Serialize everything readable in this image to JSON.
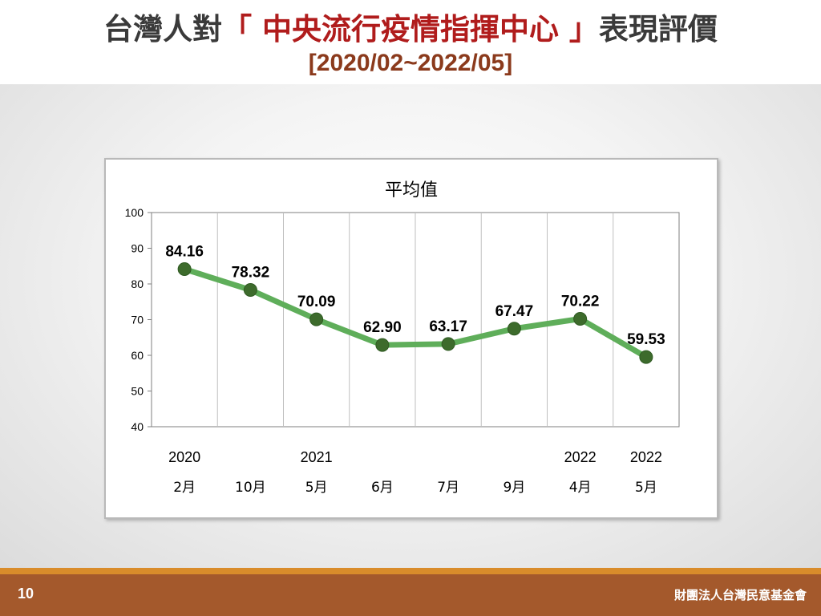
{
  "header": {
    "title_prefix": "台灣人對",
    "title_highlight": "「 中央流行疫情指揮中心 」",
    "title_suffix": "表現評價",
    "subtitle": "[2020/02~2022/05]"
  },
  "chart_data": {
    "type": "line",
    "title": "平均值",
    "categories": [
      {
        "year": "2020",
        "month": "2月"
      },
      {
        "year": "",
        "month": "10月"
      },
      {
        "year": "2021",
        "month": "5月"
      },
      {
        "year": "",
        "month": "6月"
      },
      {
        "year": "",
        "month": "7月"
      },
      {
        "year": "",
        "month": "9月"
      },
      {
        "year": "2022",
        "month": "4月"
      },
      {
        "year": "2022",
        "month": "5月"
      }
    ],
    "values": [
      84.16,
      78.32,
      70.09,
      62.9,
      63.17,
      67.47,
      70.22,
      59.53
    ],
    "value_labels": [
      "84.16",
      "78.32",
      "70.09",
      "62.90",
      "63.17",
      "67.47",
      "70.22",
      "59.53"
    ],
    "ylim": [
      40,
      100
    ],
    "yticks": [
      100,
      90,
      80,
      70,
      60,
      50,
      40
    ],
    "grid": "vertical",
    "line_color": "#5fae5a",
    "marker_color": "#3d6b2c",
    "legend": "none"
  },
  "footer": {
    "page_number": "10",
    "organization": "財團法人台灣民意基金會"
  }
}
